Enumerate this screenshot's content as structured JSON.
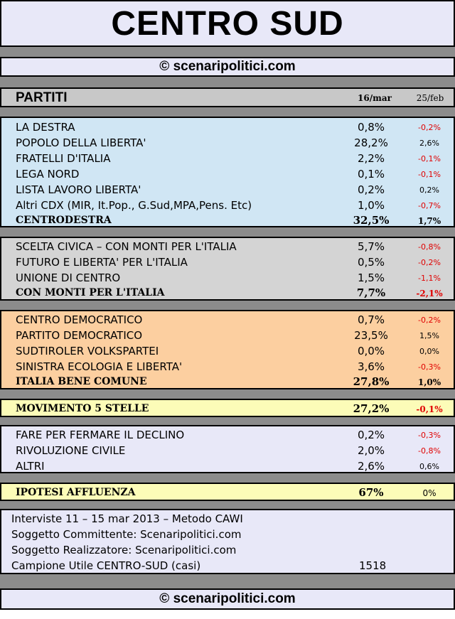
{
  "title": "CENTRO SUD",
  "site": "© scenaripolitici.com",
  "header": {
    "label": "PARTITI",
    "col1": "16/mar",
    "col2": "25/feb"
  },
  "centrodestra": {
    "rows": [
      {
        "name": "LA DESTRA",
        "v1": "0,8%",
        "v2": "-0,2%"
      },
      {
        "name": "POPOLO DELLA LIBERTA'",
        "v1": "28,2%",
        "v2": "2,6%"
      },
      {
        "name": "FRATELLI D'ITALIA",
        "v1": "2,2%",
        "v2": "-0,1%"
      },
      {
        "name": "LEGA NORD",
        "v1": "0,1%",
        "v2": "-0,1%"
      },
      {
        "name": "LISTA LAVORO LIBERTA'",
        "v1": "0,2%",
        "v2": "0,2%"
      },
      {
        "name": "Altri CDX (MIR, It.Pop., G.Sud,MPA,Pens. Etc)",
        "v1": "1,0%",
        "v2": "-0,7%"
      }
    ],
    "total": {
      "name": "CENTRODESTRA",
      "v1": "32,5%",
      "v2": "1,7%"
    }
  },
  "monti": {
    "rows": [
      {
        "name": "SCELTA CIVICA – CON MONTI PER L'ITALIA",
        "v1": "5,7%",
        "v2": "-0,8%"
      },
      {
        "name": "FUTURO E LIBERTA' PER L'ITALIA",
        "v1": "0,5%",
        "v2": "-0,2%"
      },
      {
        "name": "UNIONE DI CENTRO",
        "v1": "1,5%",
        "v2": "-1,1%"
      }
    ],
    "total": {
      "name": "CON MONTI PER L'ITALIA",
      "v1": "7,7%",
      "v2": "-2,1%"
    }
  },
  "centrosinistra": {
    "rows": [
      {
        "name": "CENTRO DEMOCRATICO",
        "v1": "0,7%",
        "v2": "-0,2%"
      },
      {
        "name": "PARTITO DEMOCRATICO",
        "v1": "23,5%",
        "v2": "1,5%"
      },
      {
        "name": "SUDTIROLER VOLKSPARTEI",
        "v1": "0,0%",
        "v2": "0,0%"
      },
      {
        "name": "SINISTRA ECOLOGIA E LIBERTA'",
        "v1": "3,6%",
        "v2": "-0,3%"
      }
    ],
    "total": {
      "name": "ITALIA BENE COMUNE",
      "v1": "27,8%",
      "v2": "1,0%"
    }
  },
  "m5s": {
    "name": "MOVIMENTO 5 STELLE",
    "v1": "27,2%",
    "v2": "-0,1%"
  },
  "altri": {
    "rows": [
      {
        "name": "FARE PER FERMARE IL DECLINO",
        "v1": "0,2%",
        "v2": "-0,3%"
      },
      {
        "name": "RIVOLUZIONE CIVILE",
        "v1": "2,0%",
        "v2": "-0,8%"
      },
      {
        "name": "ALTRI",
        "v1": "2,6%",
        "v2": "0,6%"
      }
    ]
  },
  "affluenza": {
    "name": "IPOTESI AFFLUENZA",
    "v1": "67%",
    "v2": "0%"
  },
  "info": {
    "line1": "Interviste 11 – 15 mar 2013 – Metodo CAWI",
    "line2": "Soggetto Committente: Scenaripolitici.com",
    "line3": "Soggetto Realizzatore: Scenaripolitici.com",
    "line4": "Campione Utile CENTRO-SUD (casi)",
    "sample": "1518"
  },
  "colors": {
    "negative": "#e00000",
    "centrodestra_bg": "#d0e6f4",
    "monti_bg": "#d4d4d4",
    "centrosinistra_bg": "#fccfa0",
    "highlight_bg": "#fcfcb8",
    "lavender_bg": "#e8e8f8",
    "separator": "#8c8c8c"
  }
}
